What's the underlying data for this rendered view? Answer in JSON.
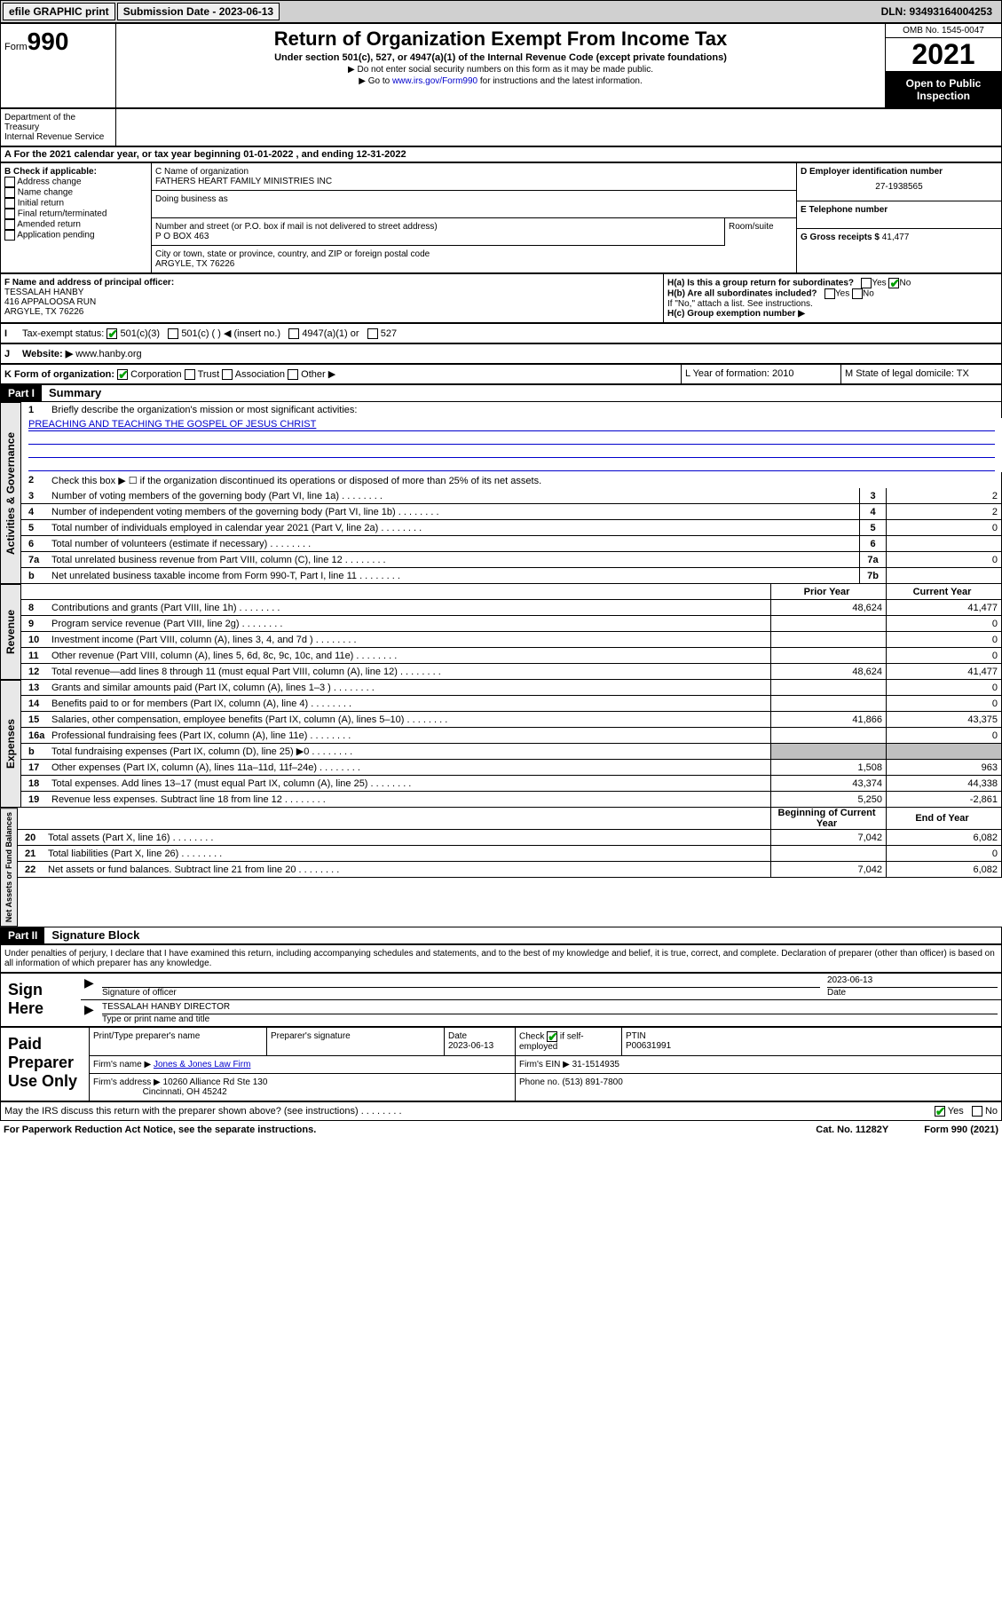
{
  "topbar": {
    "efile": "efile GRAPHIC print",
    "subdate_lbl": "Submission Date - ",
    "subdate": "2023-06-13",
    "dln": "DLN: 93493164004253"
  },
  "header": {
    "form_lbl": "Form",
    "form_num": "990",
    "title": "Return of Organization Exempt From Income Tax",
    "subtitle": "Under section 501(c), 527, or 4947(a)(1) of the Internal Revenue Code (except private foundations)",
    "note1": "▶ Do not enter social security numbers on this form as it may be made public.",
    "note2a": "▶ Go to ",
    "note2_link": "www.irs.gov/Form990",
    "note2b": " for instructions and the latest information.",
    "omb": "OMB No. 1545-0047",
    "year": "2021",
    "inspect": "Open to Public Inspection",
    "dept": "Department of the Treasury\nInternal Revenue Service"
  },
  "taxyear": "A For the 2021 calendar year, or tax year beginning 01-01-2022   , and ending 12-31-2022",
  "b": {
    "hdr": "B Check if applicable:",
    "opts": [
      "Address change",
      "Name change",
      "Initial return",
      "Final return/terminated",
      "Amended return",
      "Application pending"
    ]
  },
  "c": {
    "name_lbl": "C Name of organization",
    "name": "FATHERS HEART FAMILY MINISTRIES INC",
    "dba_lbl": "Doing business as",
    "addr_lbl": "Number and street (or P.O. box if mail is not delivered to street address)",
    "room_lbl": "Room/suite",
    "addr": "P O BOX 463",
    "city_lbl": "City or town, state or province, country, and ZIP or foreign postal code",
    "city": "ARGYLE, TX  76226"
  },
  "d": {
    "lbl": "D Employer identification number",
    "val": "27-1938565"
  },
  "e": {
    "lbl": "E Telephone number",
    "val": ""
  },
  "g": {
    "lbl": "G Gross receipts $",
    "val": "41,477"
  },
  "f": {
    "lbl": "F  Name and address of principal officer:",
    "name": "TESSALAH HANBY",
    "addr": "416 APPALOOSA RUN",
    "city": "ARGYLE, TX  76226"
  },
  "h": {
    "a": "H(a)  Is this a group return for subordinates?",
    "b": "H(b)  Are all subordinates included?",
    "b2": "If \"No,\" attach a list. See instructions.",
    "c": "H(c)  Group exemption number ▶",
    "yes": "Yes",
    "no": "No"
  },
  "i": {
    "lbl": "Tax-exempt status:",
    "opts": [
      "501(c)(3)",
      "501(c) (  ) ◀ (insert no.)",
      "4947(a)(1) or",
      "527"
    ]
  },
  "j": {
    "lbl": "Website: ▶",
    "val": "www.hanby.org"
  },
  "k": {
    "lbl": "K Form of organization:",
    "opts": [
      "Corporation",
      "Trust",
      "Association",
      "Other ▶"
    ],
    "l": "L Year of formation: 2010",
    "m": "M State of legal domicile: TX"
  },
  "part1": {
    "hdr": "Part I",
    "title": "Summary",
    "l1": "Briefly describe the organization's mission or most significant activities:",
    "mission": "PREACHING AND TEACHING THE GOSPEL OF JESUS CHRIST",
    "l2": "Check this box ▶ ☐  if the organization discontinued its operations or disposed of more than 25% of its net assets.",
    "vlab1": "Activities & Governance",
    "vlab2": "Revenue",
    "vlab3": "Expenses",
    "vlab4": "Net Assets or Fund Balances",
    "prior": "Prior Year",
    "current": "Current Year",
    "begin": "Beginning of Current Year",
    "end": "End of Year",
    "lines_gov": [
      {
        "n": "3",
        "d": "Number of voting members of the governing body (Part VI, line 1a)",
        "b": "3",
        "v": "2"
      },
      {
        "n": "4",
        "d": "Number of independent voting members of the governing body (Part VI, line 1b)",
        "b": "4",
        "v": "2"
      },
      {
        "n": "5",
        "d": "Total number of individuals employed in calendar year 2021 (Part V, line 2a)",
        "b": "5",
        "v": "0"
      },
      {
        "n": "6",
        "d": "Total number of volunteers (estimate if necessary)",
        "b": "6",
        "v": ""
      },
      {
        "n": "7a",
        "d": "Total unrelated business revenue from Part VIII, column (C), line 12",
        "b": "7a",
        "v": "0"
      },
      {
        "n": "b",
        "d": "Net unrelated business taxable income from Form 990-T, Part I, line 11",
        "b": "7b",
        "v": ""
      }
    ],
    "lines_rev": [
      {
        "n": "8",
        "d": "Contributions and grants (Part VIII, line 1h)",
        "p": "48,624",
        "c": "41,477"
      },
      {
        "n": "9",
        "d": "Program service revenue (Part VIII, line 2g)",
        "p": "",
        "c": "0"
      },
      {
        "n": "10",
        "d": "Investment income (Part VIII, column (A), lines 3, 4, and 7d )",
        "p": "",
        "c": "0"
      },
      {
        "n": "11",
        "d": "Other revenue (Part VIII, column (A), lines 5, 6d, 8c, 9c, 10c, and 11e)",
        "p": "",
        "c": "0"
      },
      {
        "n": "12",
        "d": "Total revenue—add lines 8 through 11 (must equal Part VIII, column (A), line 12)",
        "p": "48,624",
        "c": "41,477"
      }
    ],
    "lines_exp": [
      {
        "n": "13",
        "d": "Grants and similar amounts paid (Part IX, column (A), lines 1–3 )",
        "p": "",
        "c": "0"
      },
      {
        "n": "14",
        "d": "Benefits paid to or for members (Part IX, column (A), line 4)",
        "p": "",
        "c": "0"
      },
      {
        "n": "15",
        "d": "Salaries, other compensation, employee benefits (Part IX, column (A), lines 5–10)",
        "p": "41,866",
        "c": "43,375"
      },
      {
        "n": "16a",
        "d": "Professional fundraising fees (Part IX, column (A), line 11e)",
        "p": "",
        "c": "0"
      },
      {
        "n": "b",
        "d": "Total fundraising expenses (Part IX, column (D), line 25) ▶0",
        "p": "grey",
        "c": "grey"
      },
      {
        "n": "17",
        "d": "Other expenses (Part IX, column (A), lines 11a–11d, 11f–24e)",
        "p": "1,508",
        "c": "963"
      },
      {
        "n": "18",
        "d": "Total expenses. Add lines 13–17 (must equal Part IX, column (A), line 25)",
        "p": "43,374",
        "c": "44,338"
      },
      {
        "n": "19",
        "d": "Revenue less expenses. Subtract line 18 from line 12",
        "p": "5,250",
        "c": "-2,861"
      }
    ],
    "lines_net": [
      {
        "n": "20",
        "d": "Total assets (Part X, line 16)",
        "p": "7,042",
        "c": "6,082"
      },
      {
        "n": "21",
        "d": "Total liabilities (Part X, line 26)",
        "p": "",
        "c": "0"
      },
      {
        "n": "22",
        "d": "Net assets or fund balances. Subtract line 21 from line 20",
        "p": "7,042",
        "c": "6,082"
      }
    ]
  },
  "part2": {
    "hdr": "Part II",
    "title": "Signature Block",
    "perjury": "Under penalties of perjury, I declare that I have examined this return, including accompanying schedules and statements, and to the best of my knowledge and belief, it is true, correct, and complete. Declaration of preparer (other than officer) is based on all information of which preparer has any knowledge.",
    "sign": "Sign Here",
    "sig_officer": "Signature of officer",
    "date": "Date",
    "date_val": "2023-06-13",
    "name_title": "TESSALAH HANBY  DIRECTOR",
    "name_title_lbl": "Type or print name and title",
    "paid": "Paid Preparer Use Only",
    "prep_name": "Print/Type preparer's name",
    "prep_sig": "Preparer's signature",
    "prep_date": "Date",
    "prep_date_val": "2023-06-13",
    "check": "Check",
    "self": "if self-employed",
    "ptin": "PTIN",
    "ptin_val": "P00631991",
    "firm_name": "Firm's name    ▶",
    "firm_name_val": "Jones & Jones Law Firm",
    "firm_ein": "Firm's EIN ▶",
    "firm_ein_val": "31-1514935",
    "firm_addr": "Firm's address ▶",
    "firm_addr_val": "10260 Alliance Rd Ste 130",
    "firm_city": "Cincinnati, OH  45242",
    "phone": "Phone no.",
    "phone_val": "(513) 891-7800",
    "discuss": "May the IRS discuss this return with the preparer shown above? (see instructions)"
  },
  "footer": {
    "pra": "For Paperwork Reduction Act Notice, see the separate instructions.",
    "cat": "Cat. No. 11282Y",
    "form": "Form 990 (2021)"
  }
}
